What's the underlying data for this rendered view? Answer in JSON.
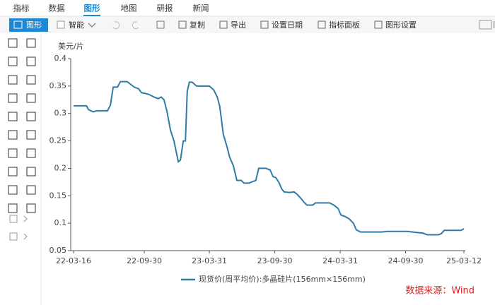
{
  "menu": [
    "指标",
    "数据",
    "图形",
    "地图",
    "研报",
    "新闻"
  ],
  "toolbar": {
    "chart_button": "图形",
    "smart": "智能",
    "items": [
      "复制",
      "导出",
      "设置日期",
      "指标面板",
      "图形设置"
    ]
  },
  "chart_data": {
    "type": "line",
    "y_unit": "美元/片",
    "x": [
      "22-03-16",
      "22-04-21",
      "22-04-27",
      "22-05-10",
      "22-05-20",
      "22-06-19",
      "22-06-27",
      "22-07-05",
      "22-07-17",
      "22-07-25",
      "22-08-13",
      "22-09-02",
      "22-09-14",
      "22-09-22",
      "22-10-12",
      "22-10-27",
      "22-11-08",
      "22-11-16",
      "22-11-24",
      "22-12-02",
      "22-12-12",
      "22-12-22",
      "23-01-03",
      "23-01-09",
      "23-01-17",
      "23-01-23",
      "23-01-28",
      "23-02-03",
      "23-02-11",
      "23-02-23",
      "23-03-31",
      "23-04-12",
      "23-04-22",
      "23-04-29",
      "23-05-09",
      "23-05-19",
      "23-05-27",
      "23-06-06",
      "23-06-16",
      "23-06-28",
      "23-07-06",
      "23-07-20",
      "23-07-27",
      "23-08-08",
      "23-08-16",
      "23-09-05",
      "23-09-17",
      "23-09-25",
      "23-10-03",
      "23-10-11",
      "23-10-19",
      "23-10-26",
      "23-11-11",
      "23-11-23",
      "23-12-01",
      "23-12-11",
      "23-12-21",
      "23-12-29",
      "24-01-14",
      "24-01-22",
      "24-03-01",
      "24-03-13",
      "24-03-25",
      "24-04-02",
      "24-04-14",
      "24-04-25",
      "24-05-07",
      "24-05-15",
      "24-05-27",
      "24-07-25",
      "24-08-10",
      "24-10-05",
      "24-11-01",
      "24-11-17",
      "24-11-29",
      "24-12-31",
      "25-01-08",
      "25-01-16",
      "25-03-04",
      "25-03-12"
    ],
    "series": [
      {
        "name": "现货价(周平均价):多晶硅片(156mm×156mm)",
        "color": "#2e7ba8",
        "values": [
          0.314,
          0.314,
          0.307,
          0.303,
          0.305,
          0.305,
          0.315,
          0.348,
          0.348,
          0.358,
          0.358,
          0.348,
          0.345,
          0.338,
          0.335,
          0.33,
          0.327,
          0.33,
          0.325,
          0.305,
          0.27,
          0.25,
          0.212,
          0.215,
          0.25,
          0.25,
          0.34,
          0.357,
          0.357,
          0.35,
          0.35,
          0.343,
          0.33,
          0.313,
          0.262,
          0.24,
          0.22,
          0.205,
          0.178,
          0.178,
          0.173,
          0.173,
          0.175,
          0.178,
          0.2,
          0.2,
          0.197,
          0.185,
          0.183,
          0.175,
          0.163,
          0.157,
          0.156,
          0.157,
          0.153,
          0.146,
          0.138,
          0.133,
          0.133,
          0.137,
          0.137,
          0.133,
          0.127,
          0.115,
          0.112,
          0.108,
          0.1,
          0.088,
          0.084,
          0.084,
          0.085,
          0.085,
          0.083,
          0.082,
          0.079,
          0.079,
          0.081,
          0.087,
          0.087,
          0.09
        ]
      }
    ],
    "xlim": [
      "22-03-16",
      "25-03-12"
    ],
    "xticks": [
      "22-03-16",
      "22-09-30",
      "23-03-31",
      "23-09-30",
      "24-03-31",
      "24-09-30",
      "25-03-12"
    ],
    "ylim": [
      0.05,
      0.4
    ],
    "yticks": [
      0.05,
      0.1,
      0.15,
      0.2,
      0.25,
      0.3,
      0.35,
      0.4
    ],
    "grid": false
  },
  "source": "数据来源：Wind"
}
